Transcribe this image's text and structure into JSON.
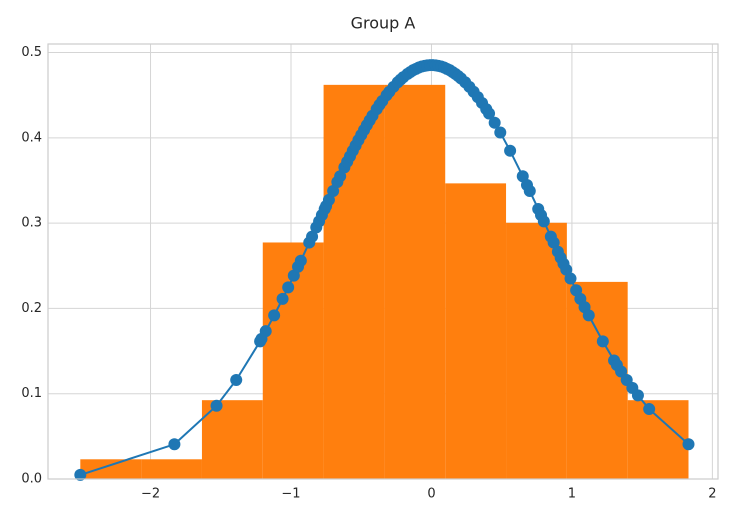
{
  "chart_data": {
    "title": "Group A",
    "xlim": [
      -2.73,
      2.04
    ],
    "ylim": [
      0,
      0.51
    ],
    "xticks": [
      {
        "value": -2,
        "label": "−2"
      },
      {
        "value": -1,
        "label": "−1"
      },
      0,
      1,
      2
    ],
    "yticks": [
      {
        "value": 0,
        "label": "0.0"
      },
      0.1,
      0.2,
      0.3,
      0.4,
      0.5
    ],
    "grid": true,
    "layers": [
      {
        "type": "histogram",
        "color": "#ff7f0e",
        "bins": [
          -2.5,
          -2.067,
          -1.634,
          -1.201,
          -0.768,
          -0.335,
          0.098,
          0.531,
          0.964,
          1.397,
          1.83
        ],
        "values": [
          0.0231,
          0.0231,
          0.0924,
          0.2773,
          0.4621,
          0.4621,
          0.3466,
          0.3004,
          0.2311,
          0.0924
        ]
      },
      {
        "type": "line",
        "color": "#1f77b4",
        "x": [
          -2.5,
          -1.83,
          -1.53,
          -1.39,
          -1.22,
          -1.21,
          -1.18,
          -1.12,
          -1.06,
          -1.02,
          -0.98,
          -0.95,
          -0.93,
          -0.87,
          -0.85,
          -0.82,
          -0.8,
          -0.78,
          -0.76,
          -0.75,
          -0.73,
          -0.7,
          -0.67,
          -0.65,
          -0.62,
          -0.6,
          -0.58,
          -0.56,
          -0.54,
          -0.52,
          -0.5,
          -0.48,
          -0.46,
          -0.44,
          -0.42,
          -0.39,
          -0.37,
          -0.35,
          -0.32,
          -0.3,
          -0.27,
          -0.24,
          -0.22,
          -0.2,
          -0.17,
          -0.15,
          -0.13,
          -0.11,
          -0.09,
          -0.07,
          -0.05,
          -0.03,
          -0.01,
          0.01,
          0.03,
          0.05,
          0.07,
          0.09,
          0.11,
          0.13,
          0.15,
          0.17,
          0.19,
          0.21,
          0.24,
          0.27,
          0.3,
          0.33,
          0.36,
          0.39,
          0.41,
          0.45,
          0.49,
          0.56,
          0.65,
          0.68,
          0.7,
          0.76,
          0.78,
          0.8,
          0.85,
          0.87,
          0.9,
          0.92,
          0.94,
          0.96,
          0.99,
          1.03,
          1.06,
          1.09,
          1.12,
          1.22,
          1.3,
          1.32,
          1.35,
          1.39,
          1.43,
          1.47,
          1.55,
          1.83
        ],
        "values": [
          0.0048,
          0.0407,
          0.0859,
          0.1161,
          0.1614,
          0.1643,
          0.1733,
          0.1918,
          0.2112,
          0.2247,
          0.2384,
          0.2489,
          0.2559,
          0.2772,
          0.2842,
          0.295,
          0.3021,
          0.3094,
          0.3166,
          0.3201,
          0.3273,
          0.3376,
          0.3482,
          0.3549,
          0.3653,
          0.3719,
          0.3783,
          0.3848,
          0.391,
          0.3973,
          0.4033,
          0.4092,
          0.4149,
          0.4205,
          0.4259,
          0.4336,
          0.4386,
          0.4432,
          0.4499,
          0.454,
          0.4598,
          0.4651,
          0.4682,
          0.4711,
          0.475,
          0.4772,
          0.4793,
          0.4809,
          0.4824,
          0.4836,
          0.4844,
          0.485,
          0.4853,
          0.4853,
          0.485,
          0.4844,
          0.4836,
          0.4824,
          0.4809,
          0.4793,
          0.4772,
          0.475,
          0.4725,
          0.4697,
          0.4651,
          0.4598,
          0.454,
          0.4477,
          0.4409,
          0.4336,
          0.4285,
          0.4177,
          0.4063,
          0.3848,
          0.3549,
          0.3447,
          0.3376,
          0.3166,
          0.3094,
          0.3021,
          0.2842,
          0.2772,
          0.2665,
          0.2594,
          0.2524,
          0.2454,
          0.235,
          0.2213,
          0.2112,
          0.2015,
          0.1918,
          0.1614,
          0.139,
          0.1337,
          0.126,
          0.1161,
          0.1069,
          0.0981,
          0.082,
          0.0407
        ]
      }
    ]
  }
}
